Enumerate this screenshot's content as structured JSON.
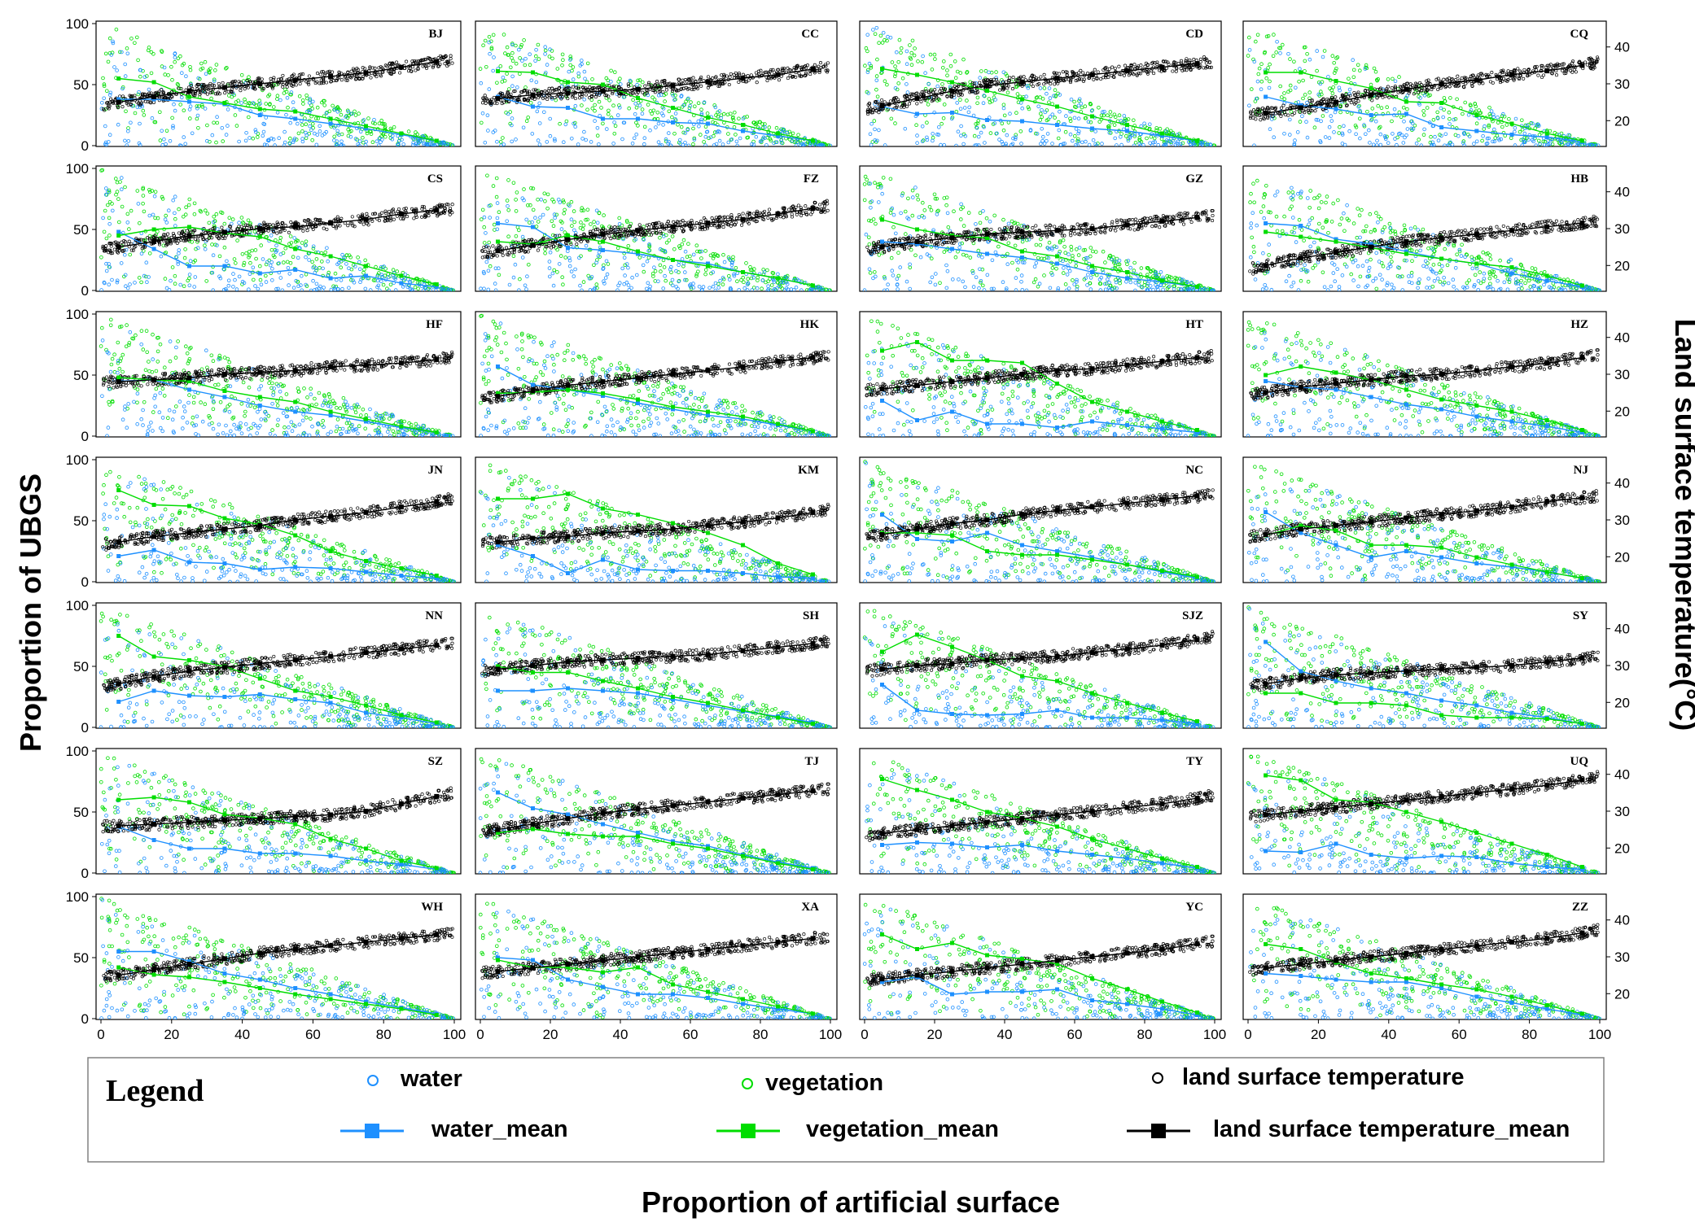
{
  "chart_data": {
    "type": "scatter",
    "title": "",
    "xlabel": "Proportion of artificial surface",
    "ylabel": "Proportion of UBGS",
    "y2label": "Land surface temperature(°C)",
    "xlim": [
      0,
      100
    ],
    "ylim": [
      0,
      100
    ],
    "y2lim": [
      13,
      47
    ],
    "x_ticks": [
      "0",
      "20",
      "40",
      "60",
      "80",
      "100"
    ],
    "y_ticks": [
      "0",
      "50",
      "100"
    ],
    "y2_ticks": [
      "20",
      "30",
      "40"
    ],
    "mean_x": [
      5,
      15,
      25,
      35,
      45,
      55,
      65,
      75,
      85,
      95
    ],
    "legend": {
      "title": "Legend",
      "water": "water",
      "vegetation": "vegetation",
      "lst": "land surface temperature",
      "water_mean": "water_mean",
      "vegetation_mean": "vegetation_mean",
      "lst_mean": "land surface temperature_mean"
    },
    "colors": {
      "water": "#1e90ff",
      "vegetation": "#00dd00",
      "lst": "#000000"
    },
    "panels": [
      {
        "city": "BJ",
        "water_mean": [
          38,
          38,
          36,
          34,
          25,
          22,
          18,
          14,
          9,
          4
        ],
        "vegetation_mean": [
          55,
          52,
          40,
          35,
          30,
          28,
          22,
          16,
          10,
          4
        ],
        "lst_mean": [
          25,
          26.5,
          28,
          29,
          30,
          31,
          32,
          33,
          34.5,
          36
        ]
      },
      {
        "city": "CC",
        "water_mean": [
          40,
          32,
          31,
          22,
          22,
          19,
          18,
          12,
          8,
          4
        ],
        "vegetation_mean": [
          61,
          60,
          52,
          50,
          39,
          31,
          23,
          17,
          10,
          4
        ],
        "lst_mean": [
          26,
          27,
          27.5,
          28,
          28.5,
          29.5,
          30.5,
          31.5,
          32.5,
          34
        ]
      },
      {
        "city": "CD",
        "water_mean": [
          32,
          26,
          27,
          21,
          20,
          17,
          14,
          12,
          8,
          4
        ],
        "vegetation_mean": [
          63,
          58,
          52,
          45,
          38,
          32,
          24,
          17,
          10,
          4
        ],
        "lst_mean": [
          24,
          26,
          28,
          29.5,
          30.5,
          31.5,
          32.5,
          33.5,
          34.5,
          35.5
        ]
      },
      {
        "city": "CQ",
        "water_mean": [
          40,
          33,
          30,
          25,
          26,
          15,
          12,
          9,
          7,
          3
        ],
        "vegetation_mean": [
          60,
          60,
          53,
          47,
          36,
          35,
          25,
          18,
          10,
          4
        ],
        "lst_mean": [
          22,
          23.5,
          25,
          27,
          28.5,
          30,
          31,
          32.5,
          33.5,
          35
        ]
      },
      {
        "city": "CS",
        "water_mean": [
          48,
          34,
          20,
          20,
          14,
          17,
          10,
          12,
          6,
          3
        ],
        "vegetation_mean": [
          45,
          50,
          52,
          47,
          44,
          34,
          28,
          20,
          12,
          5
        ],
        "lst_mean": [
          25,
          26.5,
          28,
          29,
          30,
          30.5,
          31.5,
          32.5,
          34,
          35
        ]
      },
      {
        "city": "FZ",
        "water_mean": [
          55,
          52,
          35,
          33,
          30,
          25,
          22,
          15,
          10,
          4
        ],
        "vegetation_mean": [
          40,
          38,
          45,
          40,
          32,
          25,
          20,
          15,
          10,
          4
        ],
        "lst_mean": [
          24,
          25.5,
          27,
          28.5,
          29.5,
          30.5,
          31.5,
          32.5,
          34,
          35.5
        ]
      },
      {
        "city": "GZ",
        "water_mean": [
          40,
          38,
          34,
          30,
          27,
          22,
          15,
          10,
          7,
          3
        ],
        "vegetation_mean": [
          58,
          50,
          45,
          43,
          32,
          28,
          20,
          15,
          8,
          3
        ],
        "lst_mean": [
          25,
          26.5,
          27.5,
          28.5,
          29,
          29.5,
          30,
          31,
          32,
          33
        ]
      },
      {
        "city": "HB",
        "water_mean": [
          55,
          53,
          42,
          38,
          32,
          26,
          22,
          14,
          8,
          3
        ],
        "vegetation_mean": [
          48,
          44,
          40,
          35,
          30,
          26,
          22,
          19,
          12,
          4
        ],
        "lst_mean": [
          20,
          22,
          23.5,
          25,
          26.5,
          27.5,
          28.5,
          29.5,
          30.5,
          31.5
        ]
      },
      {
        "city": "HF",
        "water_mean": [
          45,
          46,
          38,
          32,
          25,
          20,
          17,
          12,
          7,
          3
        ],
        "vegetation_mean": [
          48,
          46,
          45,
          37,
          32,
          28,
          20,
          14,
          8,
          3
        ],
        "lst_mean": [
          28,
          28.5,
          29,
          30,
          30.5,
          31,
          32,
          32.5,
          33,
          34
        ]
      },
      {
        "city": "HK",
        "water_mean": [
          57,
          42,
          38,
          33,
          27,
          22,
          17,
          14,
          9,
          4
        ],
        "vegetation_mean": [
          35,
          36,
          38,
          35,
          30,
          24,
          20,
          16,
          10,
          4
        ],
        "lst_mean": [
          24,
          25.5,
          27,
          28,
          29,
          30,
          31,
          32,
          33.5,
          34.5
        ]
      },
      {
        "city": "HT",
        "water_mean": [
          29,
          13,
          20,
          10,
          10,
          7,
          12,
          9,
          6,
          3
        ],
        "vegetation_mean": [
          70,
          77,
          62,
          62,
          60,
          43,
          28,
          20,
          12,
          5
        ],
        "lst_mean": [
          26,
          27,
          28,
          29,
          30,
          31,
          31.5,
          32.5,
          33.5,
          34.5
        ]
      },
      {
        "city": "HZ",
        "water_mean": [
          45,
          40,
          38,
          32,
          26,
          22,
          16,
          12,
          8,
          3
        ],
        "vegetation_mean": [
          50,
          57,
          52,
          46,
          38,
          30,
          25,
          20,
          13,
          5
        ],
        "lst_mean": [
          25,
          26.5,
          27.5,
          28.5,
          29.5,
          30,
          31,
          32,
          33,
          34.5
        ]
      },
      {
        "city": "JN",
        "water_mean": [
          21,
          26,
          16,
          15,
          10,
          12,
          11,
          8,
          5,
          3
        ],
        "vegetation_mean": [
          75,
          63,
          62,
          52,
          47,
          38,
          25,
          17,
          11,
          5
        ],
        "lst_mean": [
          24,
          25.5,
          26.5,
          27.5,
          28.5,
          30,
          31,
          32,
          33.5,
          35
        ]
      },
      {
        "city": "KM",
        "water_mean": [
          30,
          21,
          7,
          18,
          10,
          9,
          9,
          7,
          4,
          3
        ],
        "vegetation_mean": [
          68,
          68,
          72,
          60,
          55,
          48,
          40,
          30,
          15,
          6
        ],
        "lst_mean": [
          24,
          25,
          25.5,
          26.5,
          27,
          27.5,
          28.5,
          29.5,
          30.5,
          32
        ]
      },
      {
        "city": "NC",
        "water_mean": [
          55,
          35,
          33,
          40,
          30,
          25,
          20,
          14,
          8,
          3
        ],
        "vegetation_mean": [
          40,
          40,
          38,
          25,
          22,
          22,
          18,
          14,
          9,
          4
        ],
        "lst_mean": [
          26,
          27.5,
          29,
          30,
          31.5,
          32.5,
          33.5,
          34.5,
          35.5,
          36.5
        ]
      },
      {
        "city": "NJ",
        "water_mean": [
          57,
          40,
          30,
          20,
          25,
          20,
          15,
          12,
          8,
          3
        ],
        "vegetation_mean": [
          38,
          46,
          42,
          30,
          30,
          28,
          20,
          14,
          8,
          3
        ],
        "lst_mean": [
          26,
          27.5,
          28.5,
          29.5,
          30.5,
          31.5,
          32.5,
          33.5,
          35,
          36
        ]
      },
      {
        "city": "NN",
        "water_mean": [
          21,
          30,
          26,
          25,
          27,
          23,
          20,
          12,
          8,
          3
        ],
        "vegetation_mean": [
          75,
          58,
          55,
          50,
          40,
          30,
          25,
          18,
          10,
          4
        ],
        "lst_mean": [
          25,
          27,
          28.5,
          29.5,
          30.5,
          31.5,
          32.5,
          33.5,
          34.5,
          35.5
        ]
      },
      {
        "city": "SH",
        "water_mean": [
          30,
          30,
          32,
          30,
          28,
          23,
          18,
          13,
          9,
          4
        ],
        "vegetation_mean": [
          50,
          45,
          45,
          38,
          32,
          25,
          20,
          14,
          8,
          3
        ],
        "lst_mean": [
          29,
          30,
          31,
          31.5,
          32,
          32.5,
          33,
          34,
          35,
          36
        ]
      },
      {
        "city": "SJZ",
        "water_mean": [
          35,
          14,
          11,
          10,
          11,
          14,
          8,
          8,
          6,
          3
        ],
        "vegetation_mean": [
          62,
          76,
          66,
          55,
          42,
          38,
          28,
          20,
          12,
          5
        ],
        "lst_mean": [
          29,
          30,
          30.5,
          31.5,
          32,
          32.5,
          33.5,
          34.5,
          35.5,
          37
        ]
      },
      {
        "city": "SY",
        "water_mean": [
          70,
          46,
          38,
          32,
          28,
          22,
          18,
          12,
          8,
          3
        ],
        "vegetation_mean": [
          28,
          28,
          20,
          20,
          18,
          10,
          8,
          8,
          7,
          3
        ],
        "lst_mean": [
          25,
          26.5,
          27.5,
          28,
          28.5,
          29,
          29.5,
          30,
          31,
          32
        ]
      },
      {
        "city": "SZ",
        "water_mean": [
          38,
          27,
          20,
          20,
          16,
          16,
          14,
          10,
          7,
          3
        ],
        "vegetation_mean": [
          60,
          62,
          58,
          48,
          45,
          40,
          28,
          20,
          10,
          4
        ],
        "lst_mean": [
          26,
          26.5,
          27,
          27.5,
          28,
          28.5,
          29,
          30,
          32,
          34
        ]
      },
      {
        "city": "TJ",
        "water_mean": [
          66,
          53,
          48,
          40,
          33,
          26,
          22,
          15,
          9,
          4
        ],
        "vegetation_mean": [
          33,
          36,
          32,
          30,
          30,
          24,
          20,
          14,
          8,
          3
        ],
        "lst_mean": [
          25,
          26.5,
          28,
          29.5,
          30.5,
          31.5,
          32.5,
          33.5,
          34.5,
          35.5
        ]
      },
      {
        "city": "TY",
        "water_mean": [
          23,
          25,
          24,
          21,
          23,
          18,
          15,
          12,
          8,
          4
        ],
        "vegetation_mean": [
          77,
          68,
          60,
          50,
          45,
          38,
          28,
          20,
          12,
          5
        ],
        "lst_mean": [
          24,
          25,
          26,
          27,
          28,
          29,
          30,
          31,
          32,
          33.5
        ]
      },
      {
        "city": "UQ",
        "water_mean": [
          18,
          17,
          24,
          15,
          12,
          14,
          13,
          8,
          5,
          3
        ],
        "vegetation_mean": [
          80,
          76,
          60,
          58,
          50,
          42,
          33,
          24,
          15,
          5
        ],
        "lst_mean": [
          29,
          30,
          31,
          32,
          33,
          34,
          35,
          36,
          37,
          38.5
        ]
      },
      {
        "city": "WH",
        "water_mean": [
          55,
          55,
          47,
          37,
          32,
          25,
          20,
          14,
          9,
          4
        ],
        "vegetation_mean": [
          42,
          36,
          34,
          30,
          25,
          20,
          16,
          12,
          8,
          3
        ],
        "lst_mean": [
          25,
          26.5,
          28,
          29.5,
          31,
          32,
          33,
          34,
          35,
          36
        ]
      },
      {
        "city": "XA",
        "water_mean": [
          50,
          48,
          32,
          26,
          20,
          20,
          17,
          12,
          8,
          4
        ],
        "vegetation_mean": [
          48,
          42,
          42,
          38,
          42,
          28,
          22,
          16,
          10,
          4
        ],
        "lst_mean": [
          26,
          27,
          28,
          29,
          30,
          31,
          32,
          33,
          34,
          35
        ]
      },
      {
        "city": "YC",
        "water_mean": [
          30,
          34,
          20,
          22,
          22,
          24,
          15,
          12,
          8,
          3
        ],
        "vegetation_mean": [
          69,
          57,
          62,
          52,
          49,
          45,
          33,
          24,
          14,
          5
        ],
        "lst_mean": [
          24,
          25,
          26,
          27,
          28,
          29,
          30,
          31,
          32,
          33.5
        ]
      },
      {
        "city": "ZZ",
        "water_mean": [
          37,
          35,
          32,
          30,
          30,
          25,
          18,
          13,
          8,
          3
        ],
        "vegetation_mean": [
          61,
          57,
          46,
          37,
          33,
          28,
          24,
          18,
          11,
          4
        ],
        "lst_mean": [
          27,
          28,
          29,
          30,
          31,
          32,
          33,
          34,
          35,
          36.5
        ]
      }
    ]
  }
}
